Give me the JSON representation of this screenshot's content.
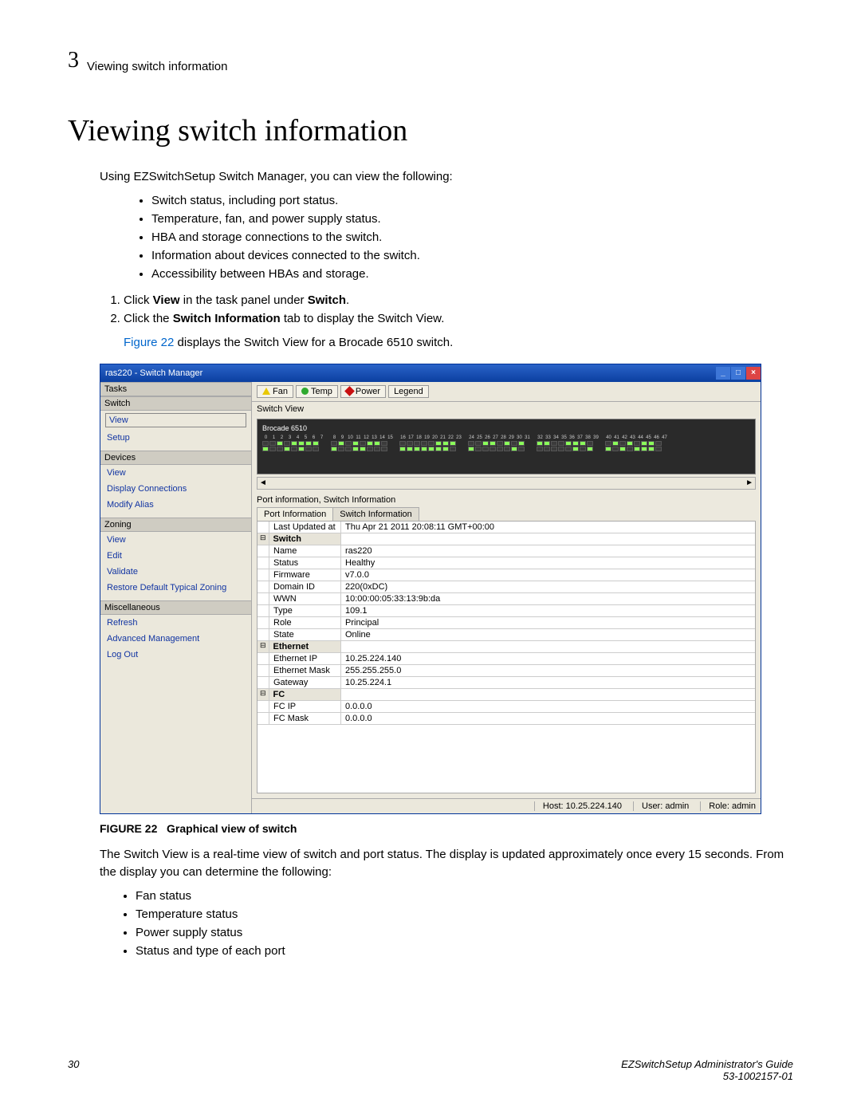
{
  "header": {
    "chapter": "3",
    "title": "Viewing switch information"
  },
  "h1": "Viewing switch information",
  "intro": "Using EZSwitchSetup Switch Manager, you can view the following:",
  "bul": [
    "Switch status, including port status.",
    "Temperature, fan, and power supply status.",
    "HBA and storage connections to the switch.",
    "Information about devices connected to the switch.",
    "Accessibility between HBAs and storage."
  ],
  "step1a": "Click ",
  "step1b": "View",
  "step1c": " in the task panel under ",
  "step1d": "Switch",
  "step1e": ".",
  "step2a": "Click the ",
  "step2b": "Switch Information",
  "step2c": " tab to display the Switch View.",
  "subline_a": "Figure 22",
  "subline_b": " displays the Switch View for a Brocade 6510 switch.",
  "win": {
    "title": "ras220 - Switch Manager",
    "tasks": "Tasks",
    "cats": {
      "switch": "Switch",
      "devices": "Devices",
      "zoning": "Zoning",
      "misc": "Miscellaneous"
    },
    "links": {
      "switch": [
        "View",
        "Setup"
      ],
      "devices": [
        "View",
        "Display Connections",
        "Modify Alias"
      ],
      "zoning": [
        "View",
        "Edit",
        "Validate",
        "Restore Default Typical Zoning"
      ],
      "misc": [
        "Refresh",
        "Advanced Management",
        "Log Out"
      ]
    },
    "tool": {
      "fan": "Fan",
      "temp": "Temp",
      "power": "Power",
      "legend": "Legend"
    },
    "sv_label": "Switch View",
    "svtitle": "Brocade 6510",
    "info_label": "Port information, Switch Information",
    "tabs": [
      "Port Information",
      "Switch Information"
    ],
    "last_upd_k": "Last Updated at",
    "last_upd_v": "Thu Apr 21 2011 20:08:11 GMT+00:00",
    "sections": [
      {
        "name": "Switch",
        "rows": [
          [
            "Name",
            "ras220"
          ],
          [
            "Status",
            "Healthy"
          ],
          [
            "Firmware",
            "v7.0.0"
          ],
          [
            "Domain ID",
            "220(0xDC)"
          ],
          [
            "WWN",
            "10:00:00:05:33:13:9b:da"
          ],
          [
            "Type",
            "109.1"
          ],
          [
            "Role",
            "Principal"
          ],
          [
            "State",
            "Online"
          ]
        ]
      },
      {
        "name": "Ethernet",
        "rows": [
          [
            "Ethernet IP",
            "10.25.224.140"
          ],
          [
            "Ethernet Mask",
            "255.255.255.0"
          ],
          [
            "Gateway",
            "10.25.224.1"
          ]
        ]
      },
      {
        "name": "FC",
        "rows": [
          [
            "FC IP",
            "0.0.0.0"
          ],
          [
            "FC Mask",
            "0.0.0.0"
          ]
        ]
      }
    ],
    "status": {
      "host": "Host: 10.25.224.140",
      "user": "User: admin",
      "role": "Role: admin"
    }
  },
  "fignum": "FIGURE 22",
  "figcap": "Graphical view of switch",
  "after": "The Switch View is a real-time view of switch and port status. The display is updated approximately once every 15 seconds. From the display you can determine the following:",
  "bul2": [
    "Fan status",
    "Temperature status",
    "Power supply status",
    "Status and type of each port"
  ],
  "footer": {
    "page": "30",
    "doc": "EZSwitchSetup Administrator's Guide",
    "num": "53-1002157-01"
  }
}
